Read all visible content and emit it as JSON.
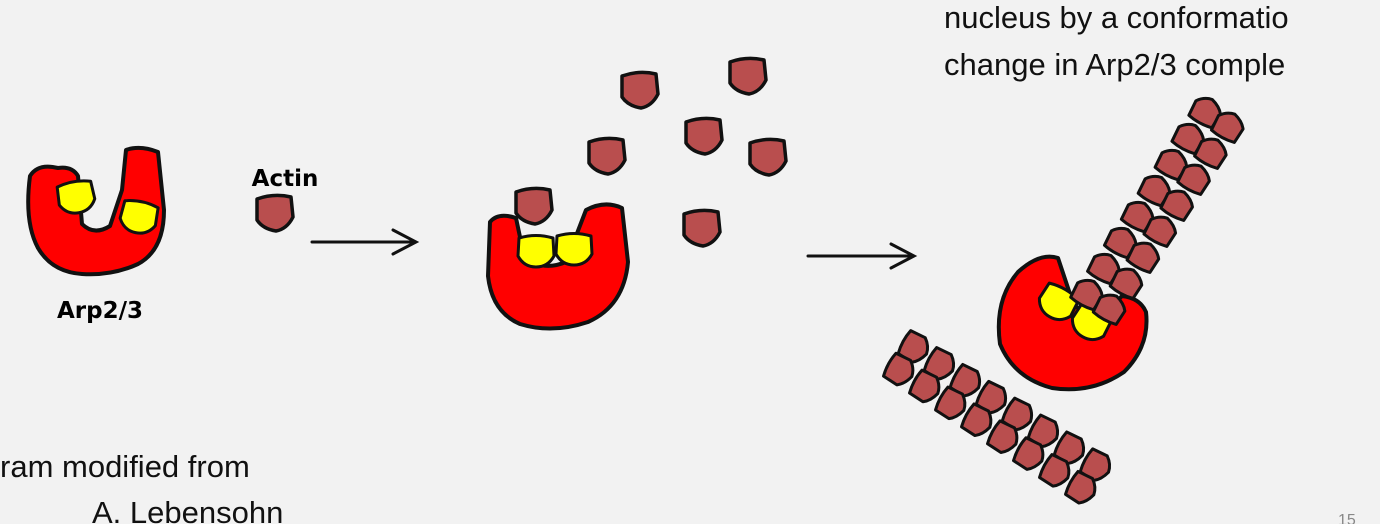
{
  "caption": {
    "line1": "nucleus by a conformatio",
    "line2": "change in Arp2/3 comple"
  },
  "labels": {
    "actin": "Actin",
    "arp": "Arp2/3"
  },
  "credit": {
    "line1": "ram modified from",
    "line2": "A. Lebensohn"
  },
  "slide_number": "15",
  "colors": {
    "background": "#f2f2f2",
    "arp_red": "#ff0000",
    "arp_yellow": "#ffff00",
    "actin_brown": "#b94e4e",
    "outline": "#111111"
  }
}
